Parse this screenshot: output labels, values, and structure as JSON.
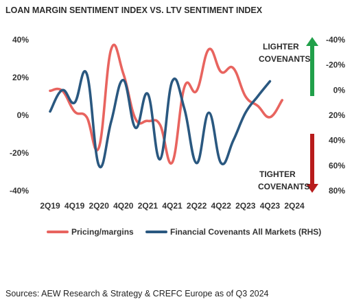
{
  "chart_data": {
    "type": "line",
    "title": "LOAN MARGIN SENTIMENT INDEX VS. LTV SENTIMENT INDEX",
    "source": "Sources: AEW Research & Strategy & CREFC Europe as of Q3 2024",
    "x": [
      "2Q19",
      "3Q19",
      "4Q19",
      "1Q20",
      "2Q20",
      "3Q20",
      "4Q20",
      "1Q21",
      "2Q21",
      "3Q21",
      "4Q21",
      "1Q22",
      "2Q22",
      "3Q22",
      "4Q22",
      "1Q23",
      "2Q23",
      "3Q23",
      "4Q23",
      "1Q24",
      "2Q24",
      "3Q24"
    ],
    "x_tick_labels": [
      "2Q19",
      "4Q19",
      "2Q20",
      "4Q20",
      "2Q21",
      "4Q21",
      "2Q22",
      "4Q22",
      "2Q23",
      "4Q23",
      "2Q24"
    ],
    "y_left": {
      "ticks": [
        "40%",
        "20%",
        "0%",
        "-20%",
        "-40%"
      ],
      "range": [
        -40,
        40
      ]
    },
    "y_right": {
      "ticks": [
        "-40%",
        "-20%",
        "0%",
        "20%",
        "40%",
        "60%",
        "80%"
      ],
      "range": [
        -40,
        80
      ],
      "inverted": true
    },
    "series": [
      {
        "name": "Pricing/margins",
        "axis": "left",
        "color": "#e8645f",
        "values": [
          13,
          13,
          2,
          -1,
          -17,
          35,
          22,
          -2,
          -3,
          -5,
          -25,
          15,
          13,
          35,
          23,
          25,
          10,
          5,
          -1,
          8,
          null,
          null
        ]
      },
      {
        "name": "Financial Covenants All Markets (RHS)",
        "axis": "right",
        "color": "#2a5880",
        "values": [
          17,
          0,
          10,
          -13,
          60,
          25,
          -8,
          30,
          3,
          55,
          -7,
          15,
          58,
          18,
          58,
          40,
          18,
          5,
          -7,
          null,
          null,
          null
        ]
      }
    ],
    "annotations": {
      "lighter_line1": "LIGHTER",
      "lighter_line2": "COVENANTS",
      "tighter_line1": "TIGHTER",
      "tighter_line2": "COVENANTS"
    },
    "colors": {
      "up_arrow": "#21a04a",
      "down_arrow": "#b81c1c"
    },
    "legend_position": "bottom"
  }
}
